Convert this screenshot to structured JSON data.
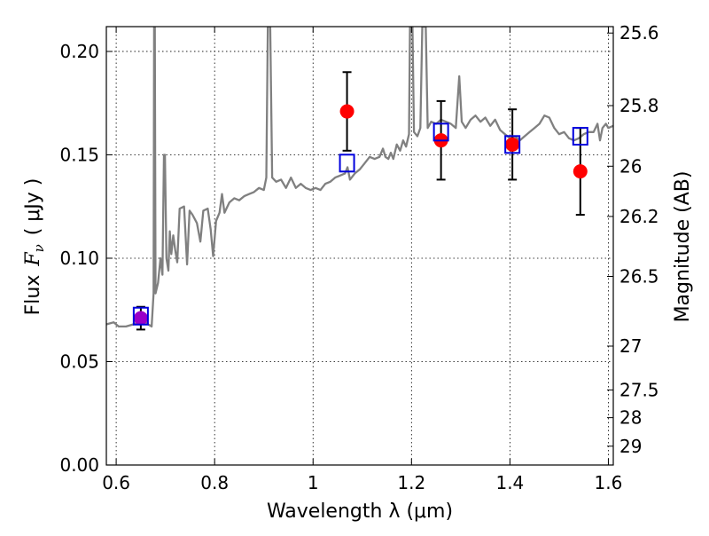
{
  "chart_data": {
    "type": "scatter",
    "xlabel": "Wavelength  λ (μm)",
    "ylabel": "Flux  F_ν  ( μJy )",
    "ylabel_parts": {
      "flux": "Flux",
      "symbol": "F",
      "subscript": "ν",
      "units": "( μJy )"
    },
    "y2label": "Magnitude (AB)",
    "xlim": [
      0.58,
      1.61
    ],
    "ylim": [
      0.0,
      0.212
    ],
    "grid": true,
    "xticks": [
      {
        "value": 0.6,
        "label": "0.6"
      },
      {
        "value": 0.8,
        "label": "0.8"
      },
      {
        "value": 1.0,
        "label": "1"
      },
      {
        "value": 1.2,
        "label": "1.2"
      },
      {
        "value": 1.4,
        "label": "1.4"
      },
      {
        "value": 1.6,
        "label": "1.6"
      }
    ],
    "yticks": [
      {
        "value": 0.0,
        "label": "0.00"
      },
      {
        "value": 0.05,
        "label": "0.05"
      },
      {
        "value": 0.1,
        "label": "0.10"
      },
      {
        "value": 0.15,
        "label": "0.15"
      },
      {
        "value": 0.2,
        "label": "0.20"
      }
    ],
    "magnitude_ticks": [
      {
        "label": "25.6",
        "flux": 0.2089
      },
      {
        "label": "25.8",
        "flux": 0.1738
      },
      {
        "label": "26",
        "flux": 0.1445
      },
      {
        "label": "26.2",
        "flux": 0.1202
      },
      {
        "label": "26.5",
        "flux": 0.0912
      },
      {
        "label": "27",
        "flux": 0.0575
      },
      {
        "label": "27.5",
        "flux": 0.0363
      },
      {
        "label": "28",
        "flux": 0.0229
      },
      {
        "label": "29",
        "flux": 0.0091
      }
    ],
    "model_spectrum": {
      "color": "#808080",
      "points": [
        [
          0.58,
          0.068
        ],
        [
          0.595,
          0.069
        ],
        [
          0.605,
          0.067
        ],
        [
          0.62,
          0.067
        ],
        [
          0.635,
          0.068
        ],
        [
          0.645,
          0.069
        ],
        [
          0.655,
          0.07
        ],
        [
          0.665,
          0.068
        ],
        [
          0.672,
          0.067
        ],
        [
          0.676,
          0.083
        ],
        [
          0.677,
          0.212
        ],
        [
          0.6785,
          0.212
        ],
        [
          0.68,
          0.083
        ],
        [
          0.685,
          0.088
        ],
        [
          0.69,
          0.1
        ],
        [
          0.694,
          0.092
        ],
        [
          0.697,
          0.15
        ],
        [
          0.699,
          0.15
        ],
        [
          0.702,
          0.1
        ],
        [
          0.706,
          0.094
        ],
        [
          0.709,
          0.113
        ],
        [
          0.712,
          0.102
        ],
        [
          0.716,
          0.111
        ],
        [
          0.72,
          0.104
        ],
        [
          0.724,
          0.098
        ],
        [
          0.729,
          0.124
        ],
        [
          0.738,
          0.125
        ],
        [
          0.744,
          0.097
        ],
        [
          0.749,
          0.123
        ],
        [
          0.755,
          0.121
        ],
        [
          0.764,
          0.117
        ],
        [
          0.771,
          0.108
        ],
        [
          0.777,
          0.123
        ],
        [
          0.786,
          0.124
        ],
        [
          0.792,
          0.114
        ],
        [
          0.797,
          0.101
        ],
        [
          0.803,
          0.118
        ],
        [
          0.81,
          0.122
        ],
        [
          0.815,
          0.131
        ],
        [
          0.82,
          0.122
        ],
        [
          0.83,
          0.127
        ],
        [
          0.84,
          0.129
        ],
        [
          0.85,
          0.128
        ],
        [
          0.86,
          0.13
        ],
        [
          0.87,
          0.131
        ],
        [
          0.88,
          0.132
        ],
        [
          0.89,
          0.134
        ],
        [
          0.9,
          0.133
        ],
        [
          0.905,
          0.139
        ],
        [
          0.908,
          0.212
        ],
        [
          0.913,
          0.212
        ],
        [
          0.917,
          0.139
        ],
        [
          0.925,
          0.137
        ],
        [
          0.935,
          0.138
        ],
        [
          0.945,
          0.134
        ],
        [
          0.955,
          0.139
        ],
        [
          0.965,
          0.134
        ],
        [
          0.975,
          0.136
        ],
        [
          0.985,
          0.134
        ],
        [
          0.995,
          0.133
        ],
        [
          1.005,
          0.134
        ],
        [
          1.015,
          0.133
        ],
        [
          1.025,
          0.136
        ],
        [
          1.035,
          0.137
        ],
        [
          1.045,
          0.139
        ],
        [
          1.055,
          0.14
        ],
        [
          1.065,
          0.141
        ],
        [
          1.07,
          0.144
        ],
        [
          1.075,
          0.138
        ],
        [
          1.085,
          0.141
        ],
        [
          1.095,
          0.143
        ],
        [
          1.105,
          0.146
        ],
        [
          1.115,
          0.149
        ],
        [
          1.125,
          0.148
        ],
        [
          1.135,
          0.149
        ],
        [
          1.142,
          0.153
        ],
        [
          1.147,
          0.149
        ],
        [
          1.153,
          0.148
        ],
        [
          1.158,
          0.151
        ],
        [
          1.163,
          0.148
        ],
        [
          1.17,
          0.155
        ],
        [
          1.177,
          0.152
        ],
        [
          1.183,
          0.157
        ],
        [
          1.189,
          0.154
        ],
        [
          1.195,
          0.16
        ],
        [
          1.197,
          0.212
        ],
        [
          1.202,
          0.212
        ],
        [
          1.205,
          0.161
        ],
        [
          1.212,
          0.159
        ],
        [
          1.218,
          0.163
        ],
        [
          1.222,
          0.212
        ],
        [
          1.229,
          0.212
        ],
        [
          1.233,
          0.163
        ],
        [
          1.24,
          0.166
        ],
        [
          1.25,
          0.165
        ],
        [
          1.26,
          0.167
        ],
        [
          1.27,
          0.166
        ],
        [
          1.28,
          0.165
        ],
        [
          1.29,
          0.163
        ],
        [
          1.297,
          0.188
        ],
        [
          1.302,
          0.166
        ],
        [
          1.31,
          0.163
        ],
        [
          1.32,
          0.167
        ],
        [
          1.33,
          0.169
        ],
        [
          1.34,
          0.166
        ],
        [
          1.35,
          0.168
        ],
        [
          1.36,
          0.164
        ],
        [
          1.37,
          0.167
        ],
        [
          1.38,
          0.162
        ],
        [
          1.39,
          0.16
        ],
        [
          1.4,
          0.158
        ],
        [
          1.41,
          0.159
        ],
        [
          1.42,
          0.157
        ],
        [
          1.43,
          0.159
        ],
        [
          1.44,
          0.161
        ],
        [
          1.45,
          0.163
        ],
        [
          1.46,
          0.165
        ],
        [
          1.47,
          0.169
        ],
        [
          1.48,
          0.168
        ],
        [
          1.49,
          0.163
        ],
        [
          1.5,
          0.16
        ],
        [
          1.51,
          0.161
        ],
        [
          1.52,
          0.158
        ],
        [
          1.53,
          0.157
        ],
        [
          1.54,
          0.158
        ],
        [
          1.55,
          0.16
        ],
        [
          1.56,
          0.161
        ],
        [
          1.57,
          0.161
        ],
        [
          1.578,
          0.165
        ],
        [
          1.583,
          0.157
        ],
        [
          1.588,
          0.163
        ],
        [
          1.595,
          0.165
        ],
        [
          1.6,
          0.163
        ],
        [
          1.61,
          0.164
        ]
      ]
    },
    "model_photometry": {
      "color": "#0000dd",
      "points": [
        {
          "x": 0.65,
          "y": 0.072
        },
        {
          "x": 1.069,
          "y": 0.146
        },
        {
          "x": 1.26,
          "y": 0.161
        },
        {
          "x": 1.405,
          "y": 0.155
        },
        {
          "x": 1.543,
          "y": 0.159
        }
      ]
    },
    "observed": {
      "points": [
        {
          "x": 0.65,
          "y": 0.071,
          "err": 0.0055,
          "color": "#9a00c8"
        },
        {
          "x": 1.069,
          "y": 0.171,
          "err": 0.019,
          "color": "#ff0000"
        },
        {
          "x": 1.26,
          "y": 0.157,
          "err": 0.019,
          "color": "#ff0000"
        },
        {
          "x": 1.405,
          "y": 0.155,
          "err": 0.017,
          "color": "#ff0000"
        },
        {
          "x": 1.543,
          "y": 0.142,
          "err": 0.021,
          "color": "#ff0000"
        }
      ]
    }
  }
}
